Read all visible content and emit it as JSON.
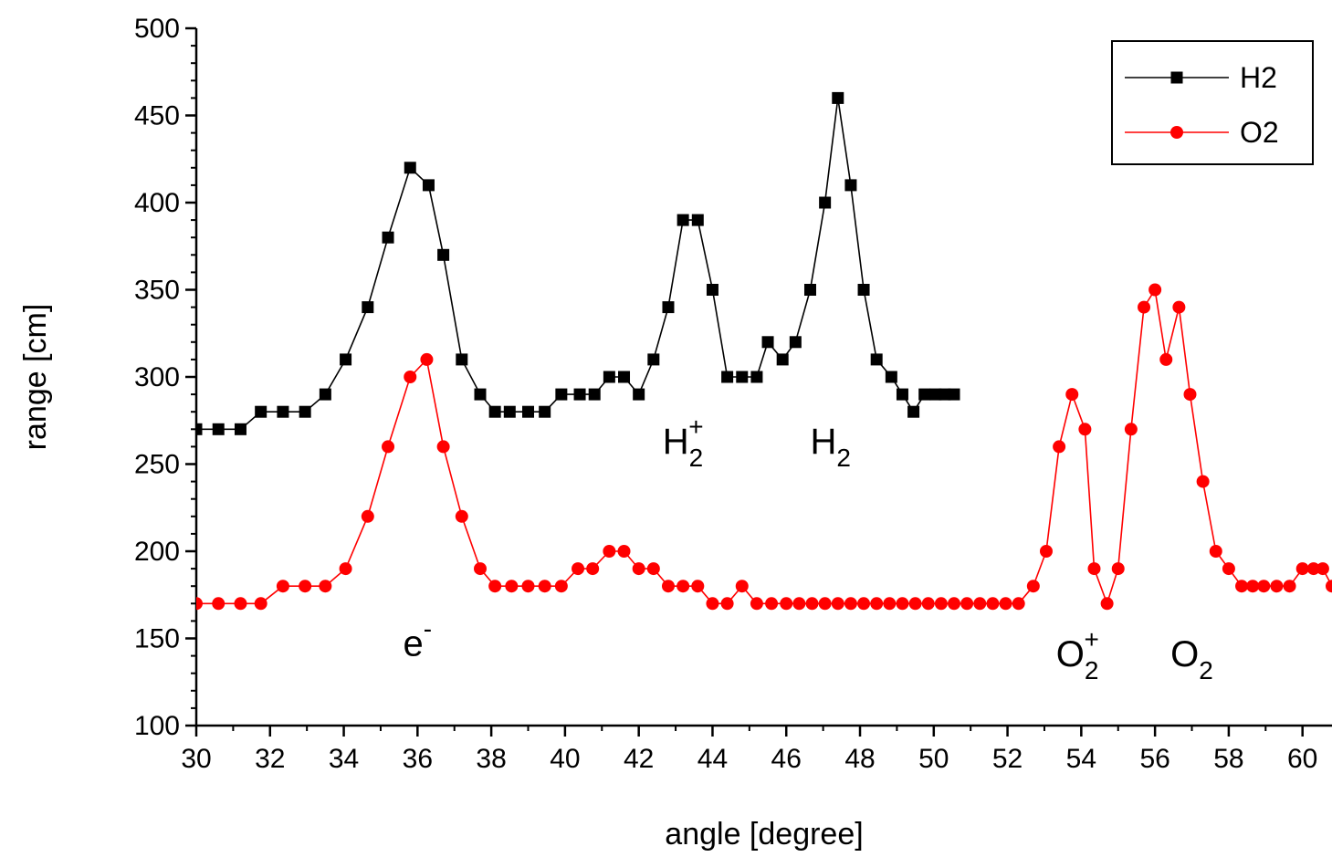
{
  "chart_data": {
    "type": "line",
    "title": "",
    "xlabel": "angle [degree]",
    "ylabel": "range [cm]",
    "xlim": [
      30,
      60.8
    ],
    "ylim": [
      100,
      500
    ],
    "x_ticks": [
      30,
      32,
      34,
      36,
      38,
      40,
      42,
      44,
      46,
      48,
      50,
      52,
      54,
      56,
      58,
      60
    ],
    "y_ticks": [
      100,
      150,
      200,
      250,
      300,
      350,
      400,
      450,
      500
    ],
    "grid": false,
    "legend": {
      "placement": "top-right",
      "entries": [
        "H2",
        "O2"
      ]
    },
    "series": [
      {
        "name": "H2",
        "color": "#000000",
        "marker": "square",
        "x": [
          30.0,
          30.6,
          31.2,
          31.75,
          32.35,
          32.95,
          33.5,
          34.05,
          34.65,
          35.2,
          35.8,
          36.3,
          36.7,
          37.2,
          37.7,
          38.1,
          38.5,
          39.0,
          39.45,
          39.9,
          40.4,
          40.8,
          41.2,
          41.6,
          42.0,
          42.4,
          42.8,
          43.2,
          43.6,
          44.0,
          44.4,
          44.8,
          45.2,
          45.5,
          45.9,
          46.25,
          46.65,
          47.05,
          47.4,
          47.75,
          48.1,
          48.45,
          48.85,
          49.15,
          49.45,
          49.75,
          50.05,
          50.3,
          50.55
        ],
        "values": [
          270,
          270,
          270,
          280,
          280,
          280,
          290,
          310,
          340,
          380,
          420,
          410,
          370,
          310,
          290,
          280,
          280,
          280,
          280,
          290,
          290,
          290,
          300,
          300,
          290,
          310,
          340,
          390,
          390,
          350,
          300,
          300,
          300,
          320,
          310,
          320,
          350,
          400,
          460,
          410,
          350,
          310,
          300,
          290,
          280,
          290,
          290,
          290,
          290
        ]
      },
      {
        "name": "O2",
        "color": "#ff0000",
        "marker": "circle",
        "x": [
          30.0,
          30.6,
          31.2,
          31.75,
          32.35,
          32.95,
          33.5,
          34.05,
          34.65,
          35.2,
          35.8,
          36.25,
          36.7,
          37.2,
          37.7,
          38.1,
          38.55,
          39.0,
          39.45,
          39.9,
          40.35,
          40.75,
          41.2,
          41.6,
          42.0,
          42.4,
          42.8,
          43.2,
          43.6,
          44.0,
          44.4,
          44.8,
          45.2,
          45.6,
          46.0,
          46.35,
          46.7,
          47.05,
          47.4,
          47.75,
          48.1,
          48.45,
          48.8,
          49.15,
          49.5,
          49.85,
          50.2,
          50.55,
          50.9,
          51.25,
          51.6,
          51.95,
          52.3,
          52.7,
          53.05,
          53.4,
          53.75,
          54.1,
          54.35,
          54.7,
          55.0,
          55.35,
          55.7,
          56.0,
          56.3,
          56.65,
          56.95,
          57.3,
          57.65,
          58.0,
          58.35,
          58.65,
          58.95,
          59.3,
          59.65,
          60.0,
          60.3,
          60.55,
          60.8
        ],
        "values": [
          170,
          170,
          170,
          170,
          180,
          180,
          180,
          190,
          220,
          260,
          300,
          310,
          260,
          220,
          190,
          180,
          180,
          180,
          180,
          180,
          190,
          190,
          200,
          200,
          190,
          190,
          180,
          180,
          180,
          170,
          170,
          180,
          170,
          170,
          170,
          170,
          170,
          170,
          170,
          170,
          170,
          170,
          170,
          170,
          170,
          170,
          170,
          170,
          170,
          170,
          170,
          170,
          170,
          180,
          200,
          260,
          290,
          270,
          190,
          170,
          190,
          270,
          340,
          350,
          310,
          340,
          290,
          240,
          200,
          190,
          180,
          180,
          180,
          180,
          180,
          190,
          190,
          190,
          180
        ]
      }
    ],
    "annotations": [
      {
        "base": "e",
        "sup": "-",
        "sub": "",
        "x": 36.0,
        "y": 140
      },
      {
        "base": "H",
        "sup": "+",
        "sub": "2",
        "x": 43.2,
        "y": 256
      },
      {
        "base": "H",
        "sup": "",
        "sub": "2",
        "x": 47.2,
        "y": 256
      },
      {
        "base": "O",
        "sup": "+",
        "sub": "2",
        "x": 53.9,
        "y": 134
      },
      {
        "base": "O",
        "sup": "",
        "sub": "2",
        "x": 57.0,
        "y": 134
      }
    ]
  }
}
